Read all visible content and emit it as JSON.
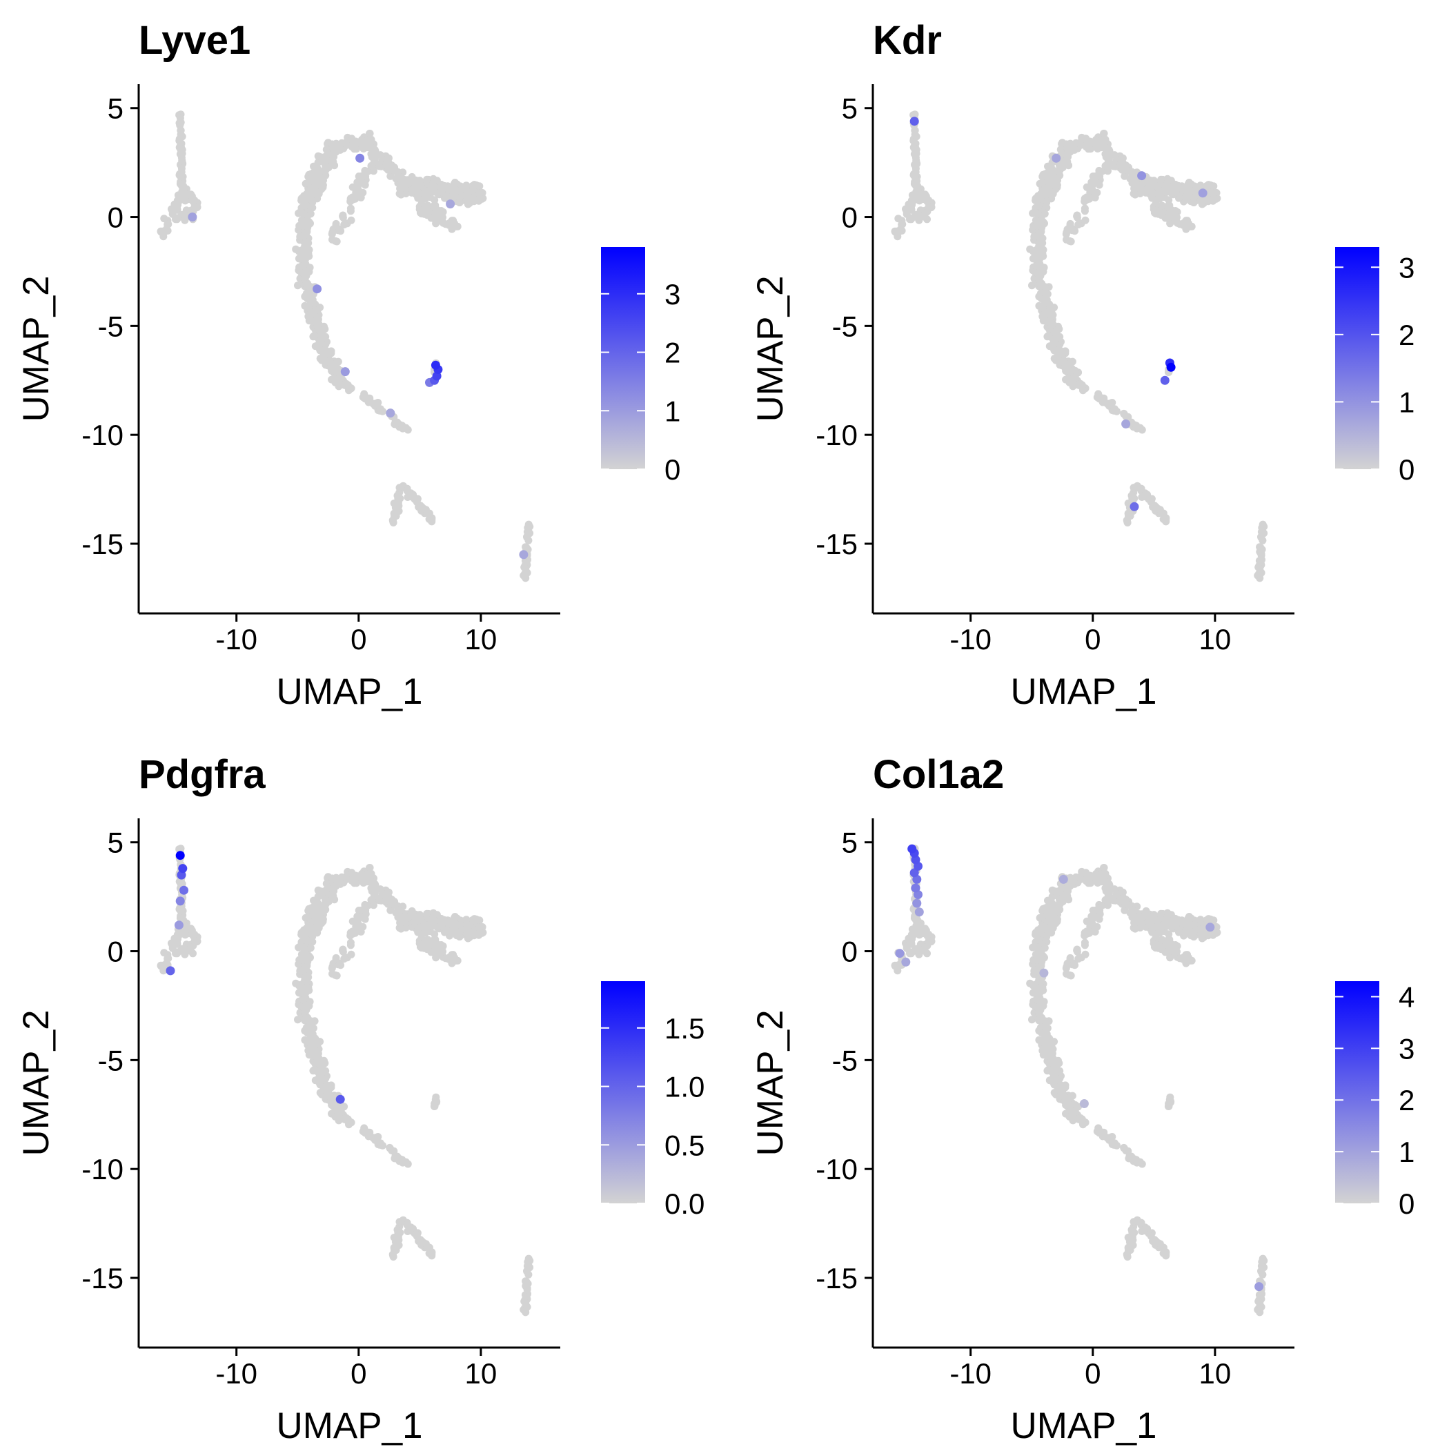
{
  "figure": {
    "type": "umap_feature_plot_grid",
    "low_color": "#D3D3D3",
    "high_color": "#0000FF"
  },
  "chart_data": [
    {
      "type": "scatter",
      "title": "Lyve1",
      "xlabel": "UMAP_1",
      "ylabel": "UMAP_2",
      "xlim": [
        -18,
        16.5
      ],
      "ylim": [
        -18.2,
        6.1
      ],
      "xticks": [
        -10,
        0,
        10
      ],
      "xtick_labels": [
        "-10",
        "0",
        "10"
      ],
      "yticks": [
        5,
        0,
        -5,
        -10,
        -15
      ],
      "ytick_labels": [
        "5",
        "0",
        "-5",
        "-10",
        "-15"
      ],
      "grid": false,
      "legend_position": "right",
      "colorbar": {
        "min": 0,
        "max": 3.8,
        "ticks": [
          0,
          1,
          2,
          3
        ],
        "tick_labels": [
          "0",
          "1",
          "2",
          "3"
        ]
      },
      "highlights": [
        {
          "x": 6.3,
          "y": -6.8,
          "value": 3.0
        },
        {
          "x": 6.5,
          "y": -7.0,
          "value": 2.8
        },
        {
          "x": 6.4,
          "y": -7.3,
          "value": 2.6
        },
        {
          "x": 6.2,
          "y": -7.5,
          "value": 2.2
        },
        {
          "x": 5.8,
          "y": -7.6,
          "value": 1.6
        },
        {
          "x": -3.4,
          "y": -3.3,
          "value": 1.2
        },
        {
          "x": -1.1,
          "y": -7.1,
          "value": 1.0
        },
        {
          "x": 2.6,
          "y": -9.0,
          "value": 0.8
        },
        {
          "x": 0.1,
          "y": 2.7,
          "value": 1.4
        },
        {
          "x": 7.5,
          "y": 0.6,
          "value": 0.8
        },
        {
          "x": -13.6,
          "y": 0.0,
          "value": 0.9
        },
        {
          "x": 13.5,
          "y": -15.5,
          "value": 0.8
        }
      ]
    },
    {
      "type": "scatter",
      "title": "Kdr",
      "xlabel": "UMAP_1",
      "ylabel": "UMAP_2",
      "xlim": [
        -18,
        16.5
      ],
      "ylim": [
        -18.2,
        6.1
      ],
      "xticks": [
        -10,
        0,
        10
      ],
      "xtick_labels": [
        "-10",
        "0",
        "10"
      ],
      "yticks": [
        5,
        0,
        -5,
        -10,
        -15
      ],
      "ytick_labels": [
        "5",
        "0",
        "-5",
        "-10",
        "-15"
      ],
      "grid": false,
      "legend_position": "right",
      "colorbar": {
        "min": 0,
        "max": 3.3,
        "ticks": [
          0,
          1,
          2,
          3
        ],
        "tick_labels": [
          "0",
          "1",
          "2",
          "3"
        ]
      },
      "highlights": [
        {
          "x": 6.4,
          "y": -6.9,
          "value": 3.3
        },
        {
          "x": 6.3,
          "y": -6.7,
          "value": 2.6
        },
        {
          "x": 5.9,
          "y": -7.5,
          "value": 1.8
        },
        {
          "x": -14.6,
          "y": 4.4,
          "value": 1.8
        },
        {
          "x": 3.4,
          "y": -13.3,
          "value": 1.6
        },
        {
          "x": 4.0,
          "y": 1.9,
          "value": 1.0
        },
        {
          "x": -3.0,
          "y": 2.7,
          "value": 0.7
        },
        {
          "x": 9.0,
          "y": 1.1,
          "value": 0.8
        },
        {
          "x": 2.7,
          "y": -9.5,
          "value": 0.7
        }
      ]
    },
    {
      "type": "scatter",
      "title": "Pdgfra",
      "xlabel": "UMAP_1",
      "ylabel": "UMAP_2",
      "xlim": [
        -18,
        16.5
      ],
      "ylim": [
        -18.2,
        6.1
      ],
      "xticks": [
        -10,
        0,
        10
      ],
      "xtick_labels": [
        "-10",
        "0",
        "10"
      ],
      "yticks": [
        5,
        0,
        -5,
        -10,
        -15
      ],
      "ytick_labels": [
        "5",
        "0",
        "-5",
        "-10",
        "-15"
      ],
      "grid": false,
      "legend_position": "right",
      "colorbar": {
        "min": 0,
        "max": 1.9,
        "ticks": [
          0,
          0.5,
          1.0,
          1.5
        ],
        "tick_labels": [
          "0.0",
          "0.5",
          "1.0",
          "1.5"
        ]
      },
      "highlights": [
        {
          "x": -14.6,
          "y": 4.4,
          "value": 1.9
        },
        {
          "x": -14.4,
          "y": 3.8,
          "value": 1.3
        },
        {
          "x": -14.5,
          "y": 3.5,
          "value": 1.1
        },
        {
          "x": -14.3,
          "y": 2.8,
          "value": 0.9
        },
        {
          "x": -14.6,
          "y": 2.3,
          "value": 0.7
        },
        {
          "x": -15.4,
          "y": -0.9,
          "value": 1.0
        },
        {
          "x": -14.7,
          "y": 1.2,
          "value": 0.5
        },
        {
          "x": -1.5,
          "y": -6.8,
          "value": 1.1
        }
      ]
    },
    {
      "type": "scatter",
      "title": "Col1a2",
      "xlabel": "UMAP_1",
      "ylabel": "UMAP_2",
      "xlim": [
        -18,
        16.5
      ],
      "ylim": [
        -18.2,
        6.1
      ],
      "xticks": [
        -10,
        0,
        10
      ],
      "xtick_labels": [
        "-10",
        "0",
        "10"
      ],
      "yticks": [
        5,
        0,
        -5,
        -10,
        -15
      ],
      "ytick_labels": [
        "5",
        "0",
        "-5",
        "-10",
        "-15"
      ],
      "grid": false,
      "legend_position": "right",
      "colorbar": {
        "min": 0,
        "max": 4.3,
        "ticks": [
          0,
          1,
          2,
          3,
          4
        ],
        "tick_labels": [
          "0",
          "1",
          "2",
          "3",
          "4"
        ]
      },
      "highlights": [
        {
          "x": -14.8,
          "y": 4.7,
          "value": 3.0
        },
        {
          "x": -14.6,
          "y": 4.5,
          "value": 2.8
        },
        {
          "x": -14.5,
          "y": 4.2,
          "value": 2.6
        },
        {
          "x": -14.3,
          "y": 3.9,
          "value": 2.5
        },
        {
          "x": -14.6,
          "y": 3.6,
          "value": 2.3
        },
        {
          "x": -14.4,
          "y": 3.3,
          "value": 2.0
        },
        {
          "x": -14.5,
          "y": 2.9,
          "value": 1.8
        },
        {
          "x": -14.3,
          "y": 2.6,
          "value": 1.6
        },
        {
          "x": -14.4,
          "y": 2.2,
          "value": 1.3
        },
        {
          "x": -14.2,
          "y": 1.8,
          "value": 1.0
        },
        {
          "x": -15.8,
          "y": -0.1,
          "value": 1.2
        },
        {
          "x": -15.3,
          "y": -0.5,
          "value": 0.9
        },
        {
          "x": -2.4,
          "y": 3.3,
          "value": 0.8
        },
        {
          "x": 9.6,
          "y": 1.1,
          "value": 0.9
        },
        {
          "x": 13.6,
          "y": -15.4,
          "value": 1.1
        },
        {
          "x": -4.0,
          "y": -1.0,
          "value": 0.6
        },
        {
          "x": -0.7,
          "y": -7.0,
          "value": 0.5
        }
      ]
    }
  ]
}
